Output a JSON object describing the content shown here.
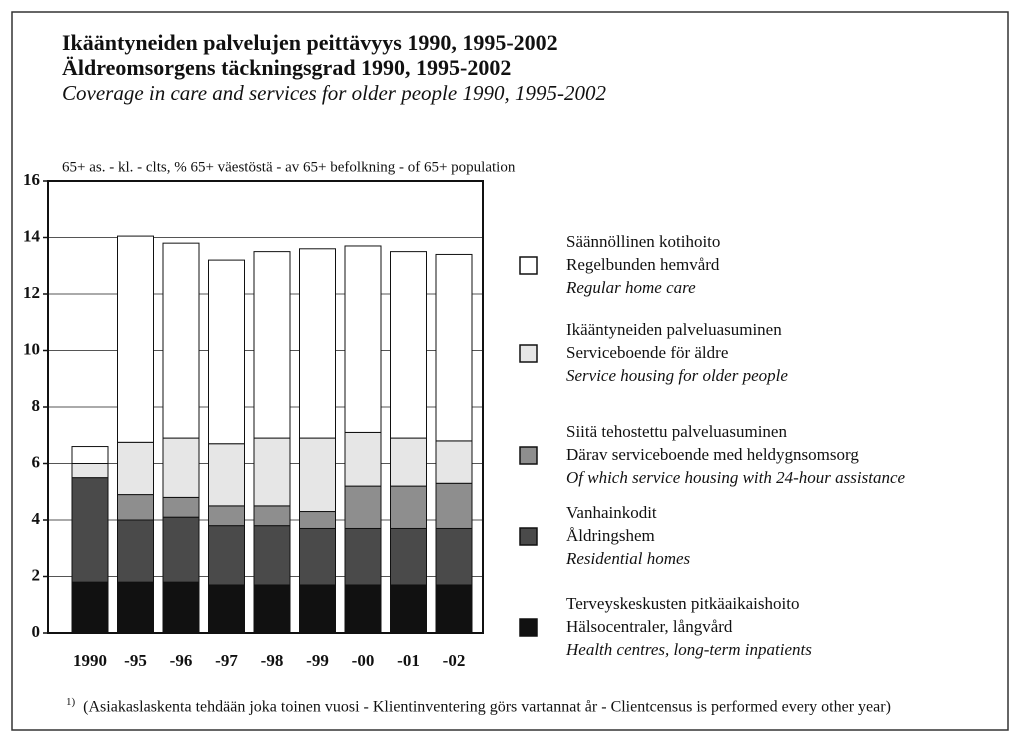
{
  "chart_data": {
    "type": "stacked_bar",
    "title": "Ikääntyneiden palvelujen peittävyys 1990, 1995-2002",
    "title_sv": "Äldreomsorgens täckningsgrad 1990, 1995-2002",
    "title_en": "Coverage in care and services for older people 1990, 1995-2002",
    "y_label": "65+ as. - kl. - clts, % 65+ väestöstä - av 65+ befolkning - of 65+ population",
    "categories": [
      "1990",
      "-95",
      "-96",
      "-97",
      "-98",
      "-99",
      "-00",
      "-01",
      "-02"
    ],
    "ylim": [
      0,
      16
    ],
    "yticks": [
      0,
      2,
      4,
      6,
      8,
      10,
      12,
      14,
      16
    ],
    "grid": true,
    "series": [
      {
        "name": "Terveyskeskusten pitkäaikaishoito",
        "name_sv": "Hälsocentraler, långvård",
        "name_en": "Health centres, long-term inpatients",
        "color": "#111111",
        "values": [
          1.8,
          1.8,
          1.8,
          1.7,
          1.7,
          1.7,
          1.7,
          1.7,
          1.7
        ]
      },
      {
        "name": "Vanhainkodit",
        "name_sv": "Åldringshem",
        "name_en": "Residential homes",
        "color": "#4a4a4a",
        "values": [
          3.7,
          2.2,
          2.3,
          2.1,
          2.1,
          2.0,
          2.0,
          2.0,
          2.0
        ]
      },
      {
        "name": "Siitä tehostettu palveluasuminen",
        "name_sv": "Därav serviceboende med heldygnsomsorg",
        "name_en": "Of which service housing with 24-hour assistance",
        "color": "#8e8e8e",
        "values": [
          0,
          0.9,
          0.7,
          0.7,
          0.7,
          0.6,
          1.5,
          1.5,
          1.6
        ]
      },
      {
        "name": "Ikääntyneiden palveluasuminen",
        "name_sv": "Serviceboende för äldre",
        "name_en": "Service housing for older people",
        "color": "#e6e6e6",
        "values": [
          0.5,
          1.85,
          2.1,
          2.2,
          2.4,
          2.6,
          1.9,
          1.7,
          1.5
        ]
      },
      {
        "name": "Säännöllinen kotihoito",
        "name_sv": "Regelbunden hemvård",
        "name_en": "Regular home care",
        "color": "#ffffff",
        "values": [
          0.6,
          7.3,
          6.9,
          6.5,
          6.6,
          6.7,
          6.6,
          6.6,
          6.6
        ]
      }
    ],
    "footnote_marker": "1)",
    "footnote": "(Asiakaslaskenta tehdään joka toinen vuosi - Klientinventering görs vartannat år - Clientcensus is performed every other year)"
  }
}
